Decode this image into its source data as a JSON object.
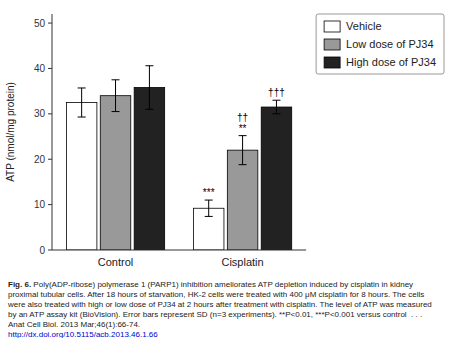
{
  "chart_data": {
    "type": "bar",
    "categories": [
      "Control",
      "Cisplatin"
    ],
    "series": [
      {
        "name": "Vehicle",
        "color": "#ffffff",
        "values": [
          32.5,
          9.2
        ],
        "errors": [
          3.2,
          1.8
        ]
      },
      {
        "name": "Low dose of PJ34",
        "color": "#999999",
        "values": [
          34.0,
          22.0
        ],
        "errors": [
          3.5,
          3.2
        ]
      },
      {
        "name": "High dose of PJ34",
        "color": "#222222",
        "values": [
          35.8,
          31.5
        ],
        "errors": [
          4.8,
          1.5
        ]
      }
    ],
    "y_label": "ATP (nmol/mg protein)",
    "ylim": [
      0,
      52
    ],
    "yticks": [
      0,
      10,
      20,
      30,
      40,
      50
    ],
    "grid": false,
    "legend": "upper right",
    "annotations": [
      {
        "text": "***",
        "series": "Vehicle",
        "category": "Cisplatin"
      },
      {
        "text": "**",
        "series": "Low dose of PJ34",
        "category": "Cisplatin"
      },
      {
        "text": "††",
        "series": "Low dose of PJ34",
        "category": "Cisplatin"
      },
      {
        "text": "†††",
        "series": "High dose of PJ34",
        "category": "Cisplatin"
      }
    ],
    "caption_label": "Fig. 6.",
    "caption": "Poly(ADP-ribose) polymerase 1 (PARP1) inhibition ameliorates ATP depletion induced by cisplatin in kidney proximal tubular cells. After 18 hours of starvation, HK-2 cells were treated with 400 μM cisplatin for 8 hours. The cells were also treated with high or low dose of PJ34 at 2 hours after treatment with cisplatin. The level of ATP was measured by an ATP assay kit (BioVision). Error bars represent SD (n=3 experiments). **P<0.01, ***P<0.001 versus control  . . .",
    "citation": "Anat Cell Biol. 2013 Mar;46(1):66-74.",
    "doi": "http://dx.doi.org/10.5115/acb.2013.46.1.66"
  }
}
